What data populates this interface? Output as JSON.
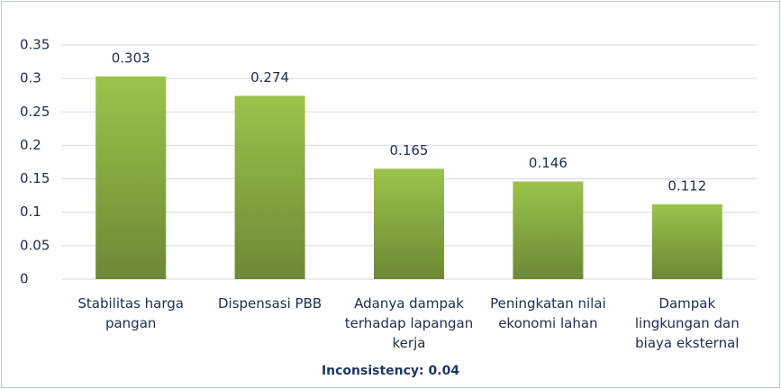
{
  "chart_data": {
    "type": "bar",
    "categories": [
      "Stabilitas harga pangan",
      "Dispensasi PBB",
      "Adanya dampak terhadap lapangan kerja",
      "Peningkatan nilai ekonomi lahan",
      "Dampak lingkungan dan biaya eksternal"
    ],
    "values": [
      0.303,
      0.274,
      0.165,
      0.146,
      0.112
    ],
    "color": "#9bc34b",
    "ylim": [
      0,
      0.35
    ],
    "yticks": [
      0,
      0.05,
      0.1,
      0.15,
      0.2,
      0.25,
      0.3,
      0.35
    ],
    "grid": true,
    "annotation": "Inconsistency: 0.04"
  }
}
